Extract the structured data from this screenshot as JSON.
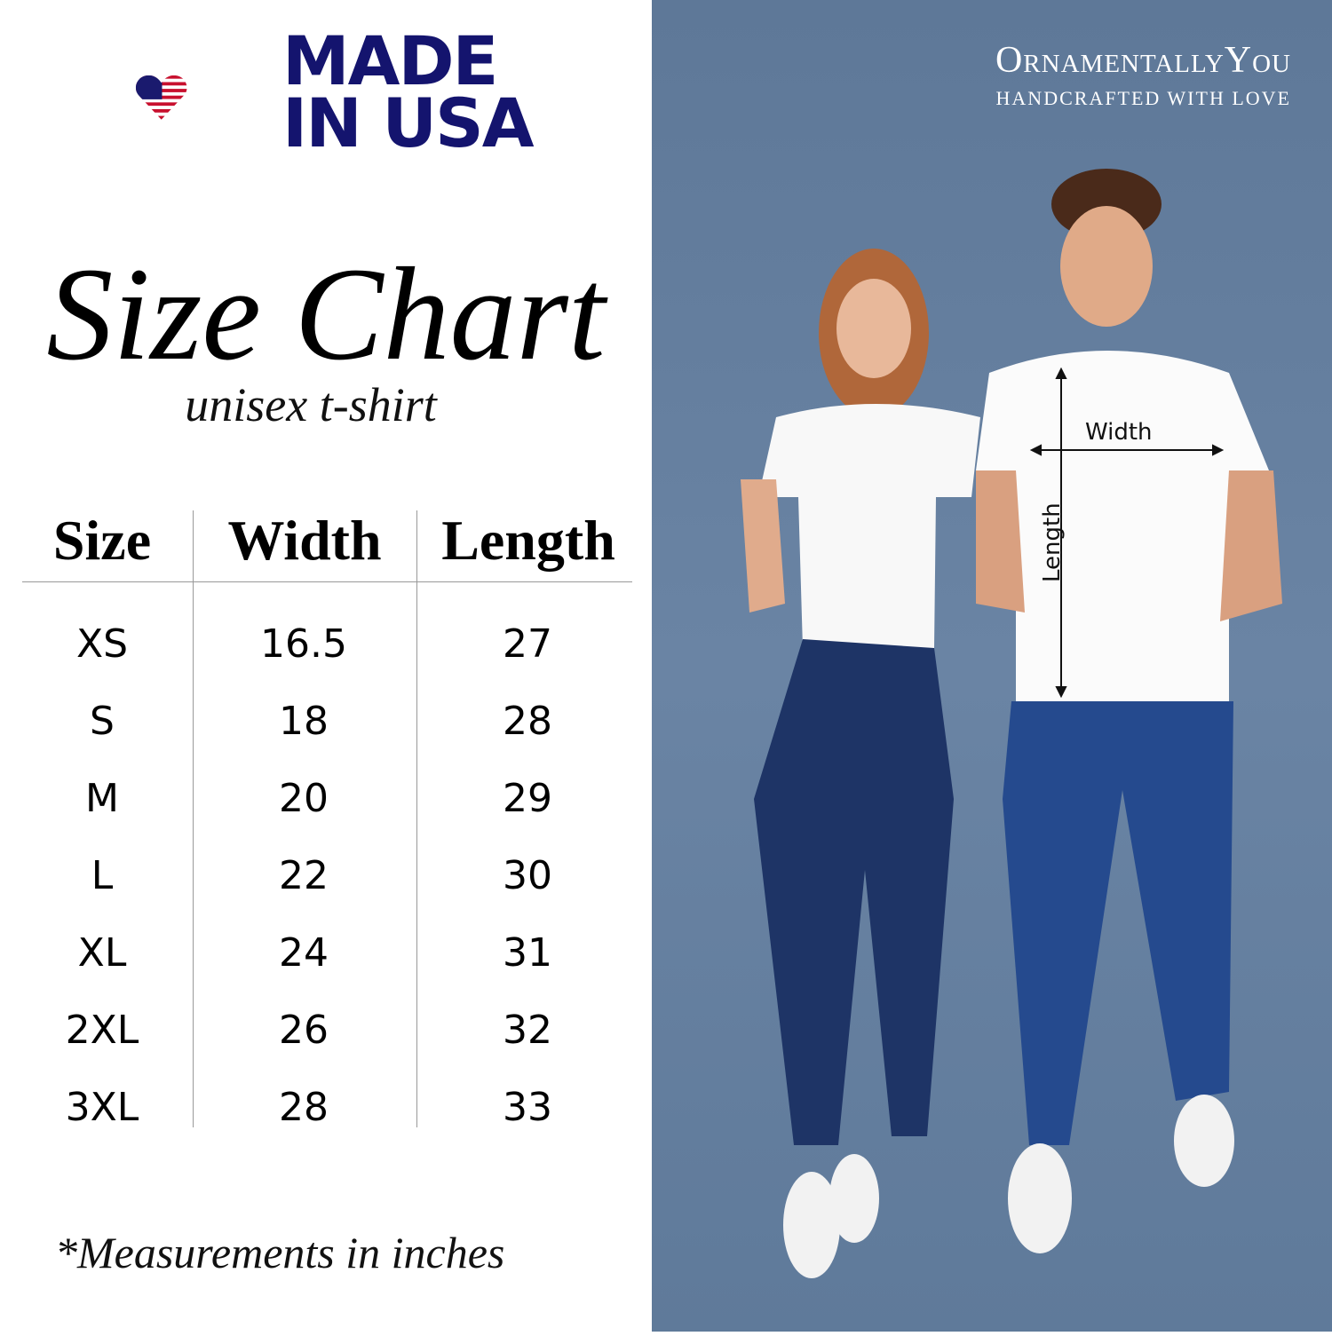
{
  "badge": {
    "line1": "MADE",
    "line2": "IN USA"
  },
  "heading": {
    "title": "Size Chart",
    "subtitle": "unisex t-shirt"
  },
  "table": {
    "columns": [
      "Size",
      "Width",
      "Length"
    ],
    "rows": [
      {
        "size": "XS",
        "width": "16.5",
        "length": "27"
      },
      {
        "size": "S",
        "width": "18",
        "length": "28"
      },
      {
        "size": "M",
        "width": "20",
        "length": "29"
      },
      {
        "size": "L",
        "width": "22",
        "length": "30"
      },
      {
        "size": "XL",
        "width": "24",
        "length": "31"
      },
      {
        "size": "2XL",
        "width": "26",
        "length": "32"
      },
      {
        "size": "3XL",
        "width": "28",
        "length": "33"
      }
    ]
  },
  "footnote": "*Measurements in inches",
  "brand": {
    "name": "OrnamentallyYou",
    "tagline": "HANDCRAFTED WITH LOVE"
  },
  "photo": {
    "width_label": "Width",
    "length_label": "Length"
  },
  "colors": {
    "navy": "#14146e",
    "red": "#c8102e",
    "background_blue": "#6580a0"
  }
}
